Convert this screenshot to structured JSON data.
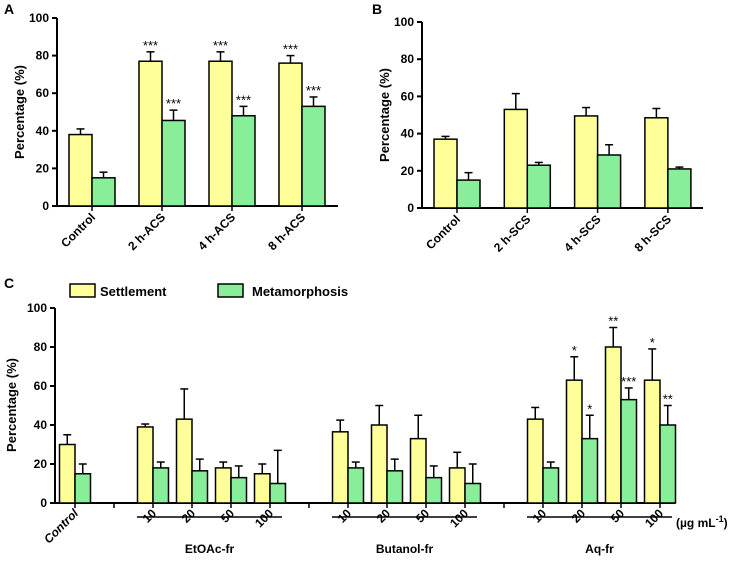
{
  "colors": {
    "settlement": "#ffff99",
    "metamorphosis": "#88ee99"
  },
  "legend": [
    "Settlement",
    "Metamorphosis"
  ],
  "chart_data": [
    {
      "type": "bar",
      "panel": "A",
      "ylabel": "Percentage (%)",
      "ylim": [
        0,
        100
      ],
      "yticks": [
        0,
        20,
        40,
        60,
        80,
        100
      ],
      "categories": [
        "Control",
        "2 h-ACS",
        "4 h-ACS",
        "8 h-ACS"
      ],
      "series": [
        {
          "name": "Settlement",
          "values": [
            38,
            77,
            77,
            76
          ],
          "err": [
            3,
            5,
            5,
            4
          ],
          "sig": [
            "",
            "***",
            "***",
            "***"
          ]
        },
        {
          "name": "Metamorphosis",
          "values": [
            15,
            45.5,
            48,
            53
          ],
          "err": [
            3,
            5.5,
            5,
            5
          ],
          "sig": [
            "",
            "***",
            "***",
            "***"
          ]
        }
      ]
    },
    {
      "type": "bar",
      "panel": "B",
      "ylabel": "Percentage (%)",
      "ylim": [
        0,
        100
      ],
      "yticks": [
        0,
        20,
        40,
        60,
        80,
        100
      ],
      "categories": [
        "Control",
        "2 h-SCS",
        "4 h-SCS",
        "8 h-SCS"
      ],
      "series": [
        {
          "name": "Settlement",
          "values": [
            37,
            53,
            49.5,
            48.5
          ],
          "err": [
            1.5,
            8.5,
            4.5,
            5
          ],
          "sig": [
            "",
            "",
            "",
            ""
          ]
        },
        {
          "name": "Metamorphosis",
          "values": [
            15,
            23,
            28.5,
            21
          ],
          "err": [
            4,
            1.5,
            5.5,
            1
          ],
          "sig": [
            "",
            "",
            "",
            ""
          ]
        }
      ]
    },
    {
      "type": "bar",
      "panel": "C",
      "ylabel": "Percentage (%)",
      "ylim": [
        0,
        100
      ],
      "yticks": [
        0,
        20,
        40,
        60,
        80,
        100
      ],
      "legend_position": "top-left",
      "unit_label": "(µg mL",
      "unit_sup": "-1",
      "unit_close": ")",
      "categories": [
        "Control",
        "",
        "10",
        "20",
        "50",
        "100",
        "",
        "10",
        "20",
        "50",
        "100",
        "",
        "10",
        "20",
        "50",
        "100"
      ],
      "groups": [
        {
          "label": "EtOAc-fr",
          "from": 2,
          "to": 5
        },
        {
          "label": "Butanol-fr",
          "from": 7,
          "to": 10
        },
        {
          "label": "Aq-fr",
          "from": 12,
          "to": 15
        }
      ],
      "series": [
        {
          "name": "Settlement",
          "values": [
            30,
            null,
            39,
            43,
            18,
            15,
            null,
            36.5,
            40,
            33,
            18,
            null,
            43,
            63,
            80,
            63
          ],
          "err": [
            5,
            null,
            1.5,
            15.5,
            3,
            5,
            null,
            6,
            10,
            12,
            8,
            null,
            6,
            12,
            10,
            16
          ],
          "sig": [
            "",
            "",
            "",
            "",
            "",
            "",
            "",
            "",
            "",
            "",
            "",
            "",
            "",
            "*",
            "**",
            "*"
          ]
        },
        {
          "name": "Metamorphosis",
          "values": [
            15,
            null,
            18,
            16.5,
            13,
            10,
            null,
            18,
            16.5,
            13,
            10,
            null,
            18,
            33,
            53,
            40
          ],
          "err": [
            5,
            null,
            3,
            6,
            6,
            17,
            null,
            3,
            6,
            6,
            10,
            null,
            3,
            12,
            6,
            10
          ],
          "sig": [
            "",
            "",
            "",
            "",
            "",
            "",
            "",
            "",
            "",
            "",
            "",
            "",
            "",
            "*",
            "***",
            "**"
          ]
        }
      ]
    }
  ]
}
